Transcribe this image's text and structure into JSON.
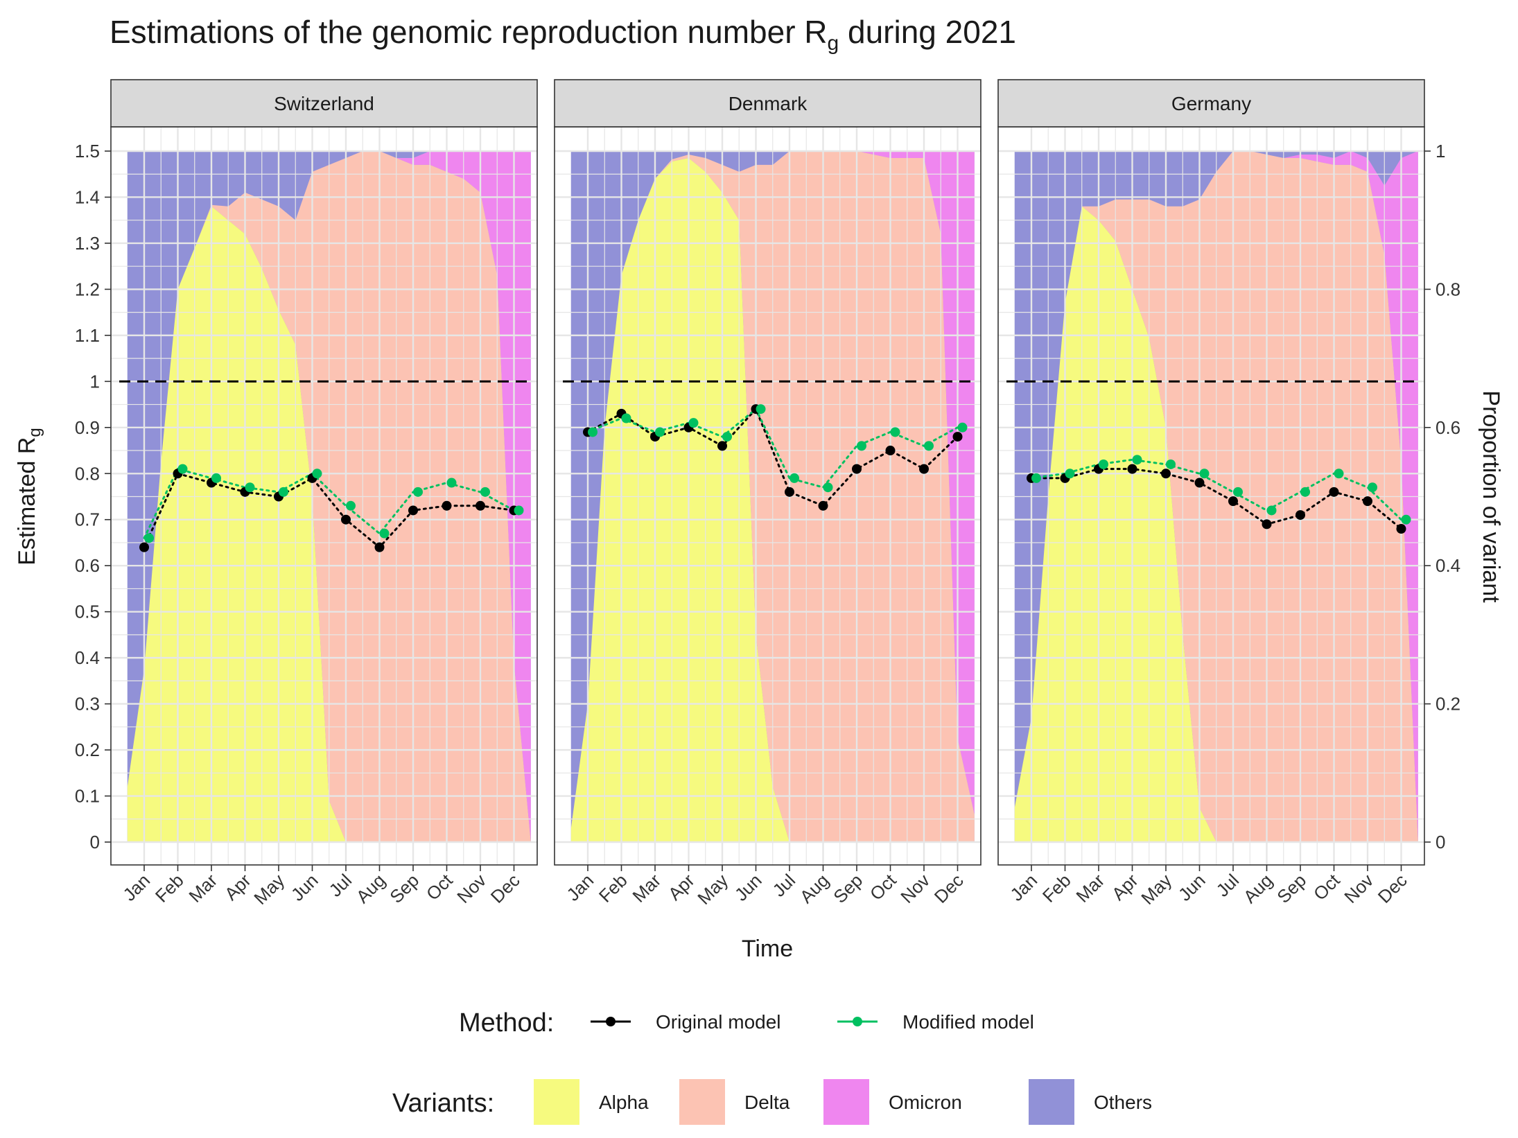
{
  "title": {
    "main": "Estimations of the genomic reproduction number R",
    "sub": "g",
    "tail": " during 2021"
  },
  "y_left_label": {
    "main": "Estimated R",
    "sub": "g"
  },
  "y_right_label": "Proportion of variant",
  "x_label": "Time",
  "chart_data": {
    "type": "line",
    "x": [
      "Jan",
      "Feb",
      "Mar",
      "Apr",
      "May",
      "Jun",
      "Jul",
      "Aug",
      "Sep",
      "Oct",
      "Nov",
      "Dec"
    ],
    "ylim_left": [
      0,
      1.5
    ],
    "ylim_right": [
      0,
      1
    ],
    "y_ticks_left": [
      "0",
      "0.1",
      "0.2",
      "0.3",
      "0.4",
      "0.5",
      "0.6",
      "0.7",
      "0.8",
      "0.9",
      "1",
      "1.1",
      "1.2",
      "1.3",
      "1.4",
      "1.5"
    ],
    "y_ticks_right": [
      "0",
      "0.2",
      "0.4",
      "0.6",
      "0.8",
      "1"
    ],
    "reference_line": 1,
    "grid": true,
    "legend_position": "bottom",
    "method_legend": {
      "title": "Method:",
      "items": [
        {
          "name": "Original model",
          "color": "#000000"
        },
        {
          "name": "Modified model",
          "color": "#00c060"
        }
      ]
    },
    "variant_legend": {
      "title": "Variants:",
      "items": [
        {
          "name": "Alpha",
          "color": "#f6fa7f"
        },
        {
          "name": "Delta",
          "color": "#fcc3b3"
        },
        {
          "name": "Omicron",
          "color": "#ef86ef"
        },
        {
          "name": "Others",
          "color": "#9191d7"
        }
      ]
    },
    "panels": [
      {
        "name": "Switzerland",
        "series": [
          {
            "name": "Original model",
            "values": [
              0.64,
              0.8,
              0.78,
              0.76,
              0.75,
              0.79,
              0.7,
              0.64,
              0.72,
              0.73,
              0.73,
              0.72
            ]
          },
          {
            "name": "Modified model",
            "values": [
              0.66,
              0.81,
              0.79,
              0.77,
              0.76,
              0.8,
              0.73,
              0.67,
              0.76,
              0.78,
              0.76,
              0.72
            ]
          }
        ],
        "variants": {
          "t": [
            -0.5,
            0,
            0.5,
            1,
            1.5,
            2,
            2.5,
            3,
            3.5,
            4,
            4.5,
            5,
            5.5,
            6,
            6.5,
            7,
            7.5,
            8,
            8.5,
            9,
            9.5,
            10,
            10.5,
            11,
            11.5
          ],
          "alpha": [
            0.08,
            0.25,
            0.55,
            0.8,
            0.86,
            0.92,
            0.9,
            0.88,
            0.83,
            0.77,
            0.72,
            0.5,
            0.06,
            0,
            0,
            0,
            0,
            0,
            0,
            0,
            0,
            0,
            0,
            0,
            0
          ],
          "delta": [
            0,
            0,
            0,
            0,
            0,
            0.002,
            0.02,
            0.06,
            0.1,
            0.15,
            0.18,
            0.47,
            0.92,
            0.99,
            1.0,
            1.0,
            0.99,
            0.98,
            0.98,
            0.97,
            0.96,
            0.94,
            0.82,
            0.26,
            0
          ],
          "omicron": [
            0,
            0,
            0,
            0,
            0,
            0,
            0,
            0,
            0,
            0,
            0,
            0,
            0,
            0,
            0,
            0,
            0,
            0.01,
            0.02,
            0.03,
            0.04,
            0.06,
            0.18,
            0.74,
            1.0
          ]
        }
      },
      {
        "name": "Denmark",
        "series": [
          {
            "name": "Original model",
            "values": [
              0.89,
              0.93,
              0.88,
              0.9,
              0.86,
              0.94,
              0.76,
              0.73,
              0.81,
              0.85,
              0.81,
              0.88
            ]
          },
          {
            "name": "Modified model",
            "values": [
              0.89,
              0.92,
              0.89,
              0.91,
              0.88,
              0.94,
              0.79,
              0.77,
              0.86,
              0.89,
              0.86,
              0.9
            ]
          }
        ],
        "variants": {
          "t": [
            -0.5,
            0,
            0.5,
            1,
            1.5,
            2,
            2.5,
            3,
            3.5,
            4,
            4.5,
            5,
            5.5,
            6,
            6.5,
            7,
            7.5,
            8,
            8.5,
            9,
            9.5,
            10,
            10.5,
            11,
            11.5
          ],
          "alpha": [
            0.02,
            0.2,
            0.6,
            0.82,
            0.9,
            0.96,
            0.985,
            0.99,
            0.97,
            0.94,
            0.9,
            0.3,
            0.08,
            0,
            0,
            0,
            0,
            0,
            0,
            0,
            0,
            0,
            0,
            0,
            0
          ],
          "delta": [
            0,
            0,
            0,
            0,
            0,
            0,
            0.003,
            0.005,
            0.02,
            0.04,
            0.07,
            0.68,
            0.9,
            1.0,
            1.0,
            1.0,
            1.0,
            1.0,
            0.995,
            0.99,
            0.99,
            0.99,
            0.88,
            0.15,
            0.04
          ],
          "omicron": [
            0,
            0,
            0,
            0,
            0,
            0,
            0,
            0,
            0,
            0,
            0,
            0,
            0,
            0,
            0,
            0,
            0,
            0,
            0.005,
            0.01,
            0.01,
            0.01,
            0.12,
            0.85,
            0.96
          ]
        }
      },
      {
        "name": "Germany",
        "series": [
          {
            "name": "Original model",
            "values": [
              0.79,
              0.79,
              0.81,
              0.81,
              0.8,
              0.78,
              0.74,
              0.69,
              0.71,
              0.76,
              0.74,
              0.68
            ]
          },
          {
            "name": "Modified model",
            "values": [
              0.79,
              0.8,
              0.82,
              0.83,
              0.82,
              0.8,
              0.76,
              0.72,
              0.76,
              0.8,
              0.77,
              0.7
            ]
          }
        ],
        "variants": {
          "t": [
            -0.5,
            0,
            0.5,
            1,
            1.5,
            2,
            2.5,
            3,
            3.5,
            4,
            4.5,
            5,
            5.5,
            6,
            6.5,
            7,
            7.5,
            8,
            8.5,
            9,
            9.5,
            10,
            10.5,
            11,
            11.5
          ],
          "alpha": [
            0.05,
            0.18,
            0.5,
            0.78,
            0.92,
            0.9,
            0.87,
            0.8,
            0.73,
            0.6,
            0.3,
            0.05,
            0,
            0,
            0,
            0,
            0,
            0,
            0,
            0,
            0,
            0,
            0,
            0,
            0
          ],
          "delta": [
            0,
            0,
            0,
            0,
            0,
            0.02,
            0.06,
            0.13,
            0.2,
            0.32,
            0.62,
            0.88,
            0.97,
            1.0,
            1.0,
            0.995,
            0.99,
            0.99,
            0.985,
            0.98,
            0.98,
            0.97,
            0.85,
            0.55,
            0
          ],
          "omicron": [
            0,
            0,
            0,
            0,
            0,
            0,
            0,
            0,
            0,
            0,
            0,
            0,
            0,
            0,
            0,
            0,
            0,
            0.005,
            0.01,
            0.01,
            0.02,
            0.02,
            0.1,
            0.44,
            1.0
          ]
        }
      }
    ]
  }
}
